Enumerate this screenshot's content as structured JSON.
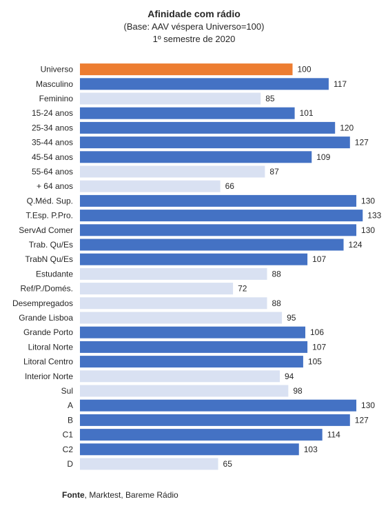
{
  "chart_data": {
    "type": "bar",
    "orientation": "horizontal",
    "title": "Afinidade com rádio",
    "subtitle": "(Base: AAV véspera Universo=100)",
    "subtitle2": "1º semestre de 2020",
    "categories": [
      "Universo",
      "Masculino",
      "Feminino",
      "15-24 anos",
      "25-34 anos",
      "35-44 anos",
      "45-54 anos",
      "55-64 anos",
      "+ 64  anos",
      "Q.Méd. Sup.",
      "T.Esp. P.Pro.",
      "ServAd Comer",
      "Trab. Qu/Es",
      "TrabN Qu/Es",
      "Estudante",
      "Ref/P./Domés.",
      "Desempregados",
      "Grande Lisboa",
      "Grande Porto",
      "Litoral Norte",
      "Litoral Centro",
      "Interior Norte",
      "Sul",
      "A",
      "B",
      "C1",
      "C2",
      "D"
    ],
    "values": [
      100,
      117,
      85,
      101,
      120,
      127,
      109,
      87,
      66,
      130,
      133,
      130,
      124,
      107,
      88,
      72,
      88,
      95,
      106,
      107,
      105,
      94,
      98,
      130,
      127,
      114,
      103,
      65
    ],
    "labels": [
      "100",
      "117",
      "85",
      "101",
      "120",
      "127",
      "109",
      "87",
      "66",
      "130",
      "133",
      "130",
      "124",
      "107",
      "88",
      "72",
      "88",
      "95",
      "106",
      "107",
      "105",
      "94",
      "98",
      "130",
      "127",
      "114",
      "103",
      "65"
    ],
    "xlim": [
      0,
      140
    ],
    "grid": false,
    "legend": "none",
    "colors": {
      "reference": "#ED7D31",
      "above": "#4472C4",
      "below": "#D9E1F2",
      "text": "#262626"
    }
  },
  "source": {
    "label": "Fonte",
    "text": ", Marktest, Bareme Rádio"
  }
}
